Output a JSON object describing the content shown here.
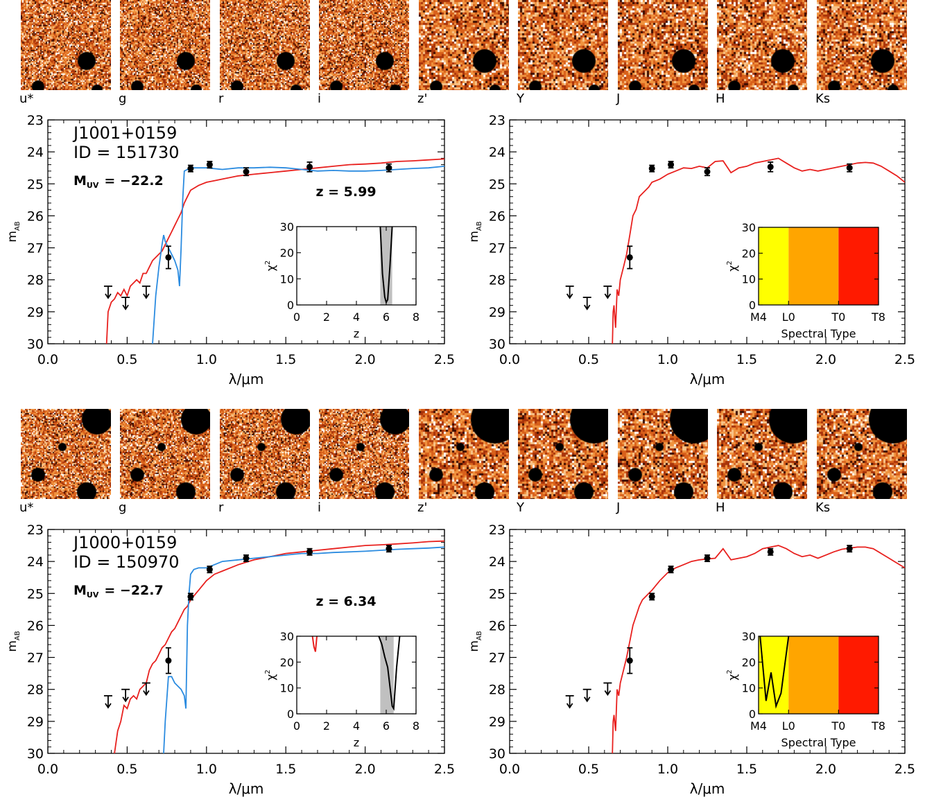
{
  "bands": [
    "u*",
    "g",
    "r",
    "i",
    "z'",
    "Y",
    "J",
    "H",
    "Ks"
  ],
  "colors": {
    "model_galaxy": "#e8201e",
    "model_lowz": "#2a8be0",
    "points": "#000000",
    "chi_band": "#c0c0c0",
    "type_M": "#ffff00",
    "type_L": "#ffa500",
    "type_T": "#ff1a00"
  },
  "chart_data": [
    {
      "type": "line",
      "object": "J1001+0159",
      "id_label": "ID  =  151730",
      "muv_label": "M",
      "muv_sub": "UV",
      "muv_value": "=  −22.2",
      "z_label": "z  =  5.99",
      "xlabel": "λ/μm",
      "ylabel": "m",
      "ylabel_sub": "AB",
      "xlim": [
        0.0,
        2.5
      ],
      "ylim": [
        30,
        23
      ],
      "xticks": [
        "0.0",
        "0.5",
        "1.0",
        "1.5",
        "2.0",
        "2.5"
      ],
      "yticks": [
        "23",
        "24",
        "25",
        "26",
        "27",
        "28",
        "29",
        "30"
      ],
      "photometry": [
        {
          "x": 0.76,
          "y": 27.3,
          "err": 0.35
        },
        {
          "x": 0.9,
          "y": 24.52,
          "err": 0.1
        },
        {
          "x": 1.02,
          "y": 24.4,
          "err": 0.1
        },
        {
          "x": 1.25,
          "y": 24.62,
          "err": 0.12
        },
        {
          "x": 1.65,
          "y": 24.47,
          "err": 0.15
        },
        {
          "x": 2.15,
          "y": 24.5,
          "err": 0.12
        }
      ],
      "upper_limits": [
        {
          "x": 0.38,
          "y": 28.2
        },
        {
          "x": 0.49,
          "y": 28.55
        },
        {
          "x": 0.62,
          "y": 28.2
        }
      ],
      "series": [
        {
          "color_key": "model_galaxy",
          "x": [
            0.37,
            0.38,
            0.4,
            0.42,
            0.44,
            0.46,
            0.48,
            0.5,
            0.52,
            0.54,
            0.56,
            0.58,
            0.6,
            0.62,
            0.64,
            0.66,
            0.68,
            0.7,
            0.72,
            0.74,
            0.76,
            0.78,
            0.8,
            0.82,
            0.84,
            0.86,
            0.88,
            0.9,
            0.95,
            1.0,
            1.05,
            1.1,
            1.2,
            1.3,
            1.4,
            1.5,
            1.6,
            1.7,
            1.8,
            1.9,
            2.0,
            2.1,
            2.2,
            2.3,
            2.4,
            2.5
          ],
          "y": [
            30.0,
            29.0,
            28.7,
            28.6,
            28.4,
            28.5,
            28.3,
            28.5,
            28.2,
            28.1,
            28.0,
            28.1,
            27.8,
            27.8,
            27.6,
            27.4,
            27.3,
            27.2,
            27.1,
            26.9,
            26.7,
            26.5,
            26.3,
            26.1,
            25.9,
            25.6,
            25.4,
            25.2,
            25.05,
            24.95,
            24.9,
            24.85,
            24.75,
            24.7,
            24.65,
            24.6,
            24.55,
            24.5,
            24.45,
            24.4,
            24.38,
            24.35,
            24.3,
            24.28,
            24.25,
            24.22
          ]
        },
        {
          "color_key": "model_lowz",
          "x": [
            0.66,
            0.68,
            0.7,
            0.72,
            0.73,
            0.74,
            0.76,
            0.78,
            0.8,
            0.82,
            0.83,
            0.84,
            0.85,
            0.86,
            0.88,
            0.9,
            0.95,
            1.0,
            1.1,
            1.2,
            1.3,
            1.4,
            1.5,
            1.6,
            1.7,
            1.8,
            1.9,
            2.0,
            2.1,
            2.2,
            2.3,
            2.4,
            2.5
          ],
          "y": [
            30.0,
            28.5,
            27.6,
            26.9,
            26.6,
            26.8,
            27.0,
            27.2,
            27.4,
            27.7,
            28.2,
            27.0,
            25.5,
            24.6,
            24.55,
            24.5,
            24.5,
            24.5,
            24.55,
            24.5,
            24.5,
            24.48,
            24.5,
            24.55,
            24.6,
            24.58,
            24.6,
            24.6,
            24.58,
            24.55,
            24.52,
            24.5,
            24.45
          ]
        }
      ],
      "inset": {
        "xlim": [
          0,
          8
        ],
        "ylim": [
          0,
          30
        ],
        "xlabel": "z",
        "ylabel": "χ",
        "ylabel_sup": "2",
        "xticks": [
          "0",
          "2",
          "4",
          "6",
          "8"
        ],
        "yticks": [
          "0",
          "10",
          "20",
          "30"
        ],
        "band": [
          5.6,
          6.4
        ],
        "curves": [
          {
            "color_key": "points",
            "x": [
              5.6,
              5.75,
              5.9,
              6.0,
              6.1,
              6.25,
              6.4
            ],
            "y": [
              30,
              12,
              3,
              1,
              2,
              15,
              30
            ]
          }
        ]
      }
    },
    {
      "type": "line",
      "xlabel": "λ/μm",
      "ylabel": "m",
      "ylabel_sub": "AB",
      "xlim": [
        0.0,
        2.5
      ],
      "ylim": [
        30,
        23
      ],
      "xticks": [
        "0.0",
        "0.5",
        "1.0",
        "1.5",
        "2.0",
        "2.5"
      ],
      "yticks": [
        "23",
        "24",
        "25",
        "26",
        "27",
        "28",
        "29",
        "30"
      ],
      "photometry": [
        {
          "x": 0.76,
          "y": 27.3,
          "err": 0.35
        },
        {
          "x": 0.9,
          "y": 24.52,
          "err": 0.1
        },
        {
          "x": 1.02,
          "y": 24.4,
          "err": 0.1
        },
        {
          "x": 1.25,
          "y": 24.62,
          "err": 0.12
        },
        {
          "x": 1.65,
          "y": 24.47,
          "err": 0.15
        },
        {
          "x": 2.15,
          "y": 24.5,
          "err": 0.12
        }
      ],
      "upper_limits": [
        {
          "x": 0.38,
          "y": 28.2
        },
        {
          "x": 0.49,
          "y": 28.55
        },
        {
          "x": 0.62,
          "y": 28.2
        }
      ],
      "series": [
        {
          "color_key": "model_galaxy",
          "x": [
            0.65,
            0.655,
            0.66,
            0.67,
            0.68,
            0.69,
            0.7,
            0.72,
            0.74,
            0.76,
            0.78,
            0.8,
            0.82,
            0.84,
            0.86,
            0.88,
            0.9,
            0.95,
            1.0,
            1.05,
            1.1,
            1.15,
            1.2,
            1.25,
            1.3,
            1.35,
            1.4,
            1.45,
            1.5,
            1.55,
            1.6,
            1.65,
            1.7,
            1.75,
            1.8,
            1.85,
            1.9,
            1.95,
            2.0,
            2.05,
            2.1,
            2.15,
            2.2,
            2.25,
            2.3,
            2.35,
            2.4,
            2.45,
            2.5
          ],
          "y": [
            30.0,
            29.0,
            28.8,
            29.5,
            28.3,
            28.5,
            28.0,
            27.6,
            27.2,
            26.6,
            26.0,
            25.8,
            25.4,
            25.3,
            25.2,
            25.1,
            24.95,
            24.85,
            24.7,
            24.6,
            24.5,
            24.52,
            24.45,
            24.5,
            24.3,
            24.28,
            24.65,
            24.5,
            24.45,
            24.35,
            24.3,
            24.25,
            24.2,
            24.35,
            24.5,
            24.6,
            24.55,
            24.6,
            24.55,
            24.5,
            24.45,
            24.4,
            24.35,
            24.33,
            24.35,
            24.45,
            24.6,
            24.75,
            24.95
          ]
        }
      ],
      "inset": {
        "xlabel": "Spectral Type",
        "ylabel": "χ",
        "ylabel_sup": "2",
        "ylim": [
          0,
          30
        ],
        "xticks": [
          "M4",
          "L0",
          "T0",
          "T8"
        ],
        "yticks": [
          "0",
          "10",
          "20",
          "30"
        ],
        "regions": [
          {
            "from": 0,
            "to": 6,
            "color_key": "type_M"
          },
          {
            "from": 6,
            "to": 16,
            "color_key": "type_L"
          },
          {
            "from": 16,
            "to": 24,
            "color_key": "type_T"
          }
        ],
        "xlim": [
          0,
          24
        ],
        "curves": []
      }
    },
    {
      "type": "line",
      "object": "J1000+0159",
      "id_label": "ID  =  150970",
      "muv_label": "M",
      "muv_sub": "UV",
      "muv_value": "=  −22.7",
      "z_label": "z  =  6.34",
      "xlabel": "λ/μm",
      "ylabel": "m",
      "ylabel_sub": "AB",
      "xlim": [
        0.0,
        2.5
      ],
      "ylim": [
        30,
        23
      ],
      "xticks": [
        "0.0",
        "0.5",
        "1.0",
        "1.5",
        "2.0",
        "2.5"
      ],
      "yticks": [
        "23",
        "24",
        "25",
        "26",
        "27",
        "28",
        "29",
        "30"
      ],
      "photometry": [
        {
          "x": 0.76,
          "y": 27.1,
          "err": 0.4
        },
        {
          "x": 0.9,
          "y": 25.1,
          "err": 0.1
        },
        {
          "x": 1.02,
          "y": 24.25,
          "err": 0.1
        },
        {
          "x": 1.25,
          "y": 23.9,
          "err": 0.1
        },
        {
          "x": 1.65,
          "y": 23.7,
          "err": 0.1
        },
        {
          "x": 2.15,
          "y": 23.6,
          "err": 0.1
        }
      ],
      "upper_limits": [
        {
          "x": 0.38,
          "y": 28.2
        },
        {
          "x": 0.49,
          "y": 28.0
        },
        {
          "x": 0.62,
          "y": 27.8
        }
      ],
      "series": [
        {
          "color_key": "model_galaxy",
          "x": [
            0.42,
            0.44,
            0.46,
            0.48,
            0.5,
            0.52,
            0.54,
            0.56,
            0.58,
            0.6,
            0.62,
            0.64,
            0.66,
            0.68,
            0.7,
            0.72,
            0.74,
            0.76,
            0.78,
            0.8,
            0.82,
            0.84,
            0.86,
            0.88,
            0.9,
            0.95,
            1.0,
            1.05,
            1.1,
            1.2,
            1.3,
            1.4,
            1.5,
            1.6,
            1.7,
            1.8,
            1.9,
            2.0,
            2.1,
            2.2,
            2.3,
            2.4,
            2.5
          ],
          "y": [
            30.0,
            29.3,
            29.0,
            28.5,
            28.6,
            28.3,
            28.2,
            28.3,
            28.0,
            27.9,
            27.8,
            27.4,
            27.2,
            27.1,
            26.9,
            26.7,
            26.6,
            26.4,
            26.2,
            26.1,
            25.9,
            25.7,
            25.5,
            25.4,
            25.2,
            24.9,
            24.6,
            24.4,
            24.3,
            24.1,
            23.95,
            23.85,
            23.75,
            23.7,
            23.65,
            23.6,
            23.55,
            23.5,
            23.48,
            23.45,
            23.42,
            23.38,
            23.36
          ]
        },
        {
          "color_key": "model_lowz",
          "x": [
            0.73,
            0.74,
            0.76,
            0.78,
            0.8,
            0.82,
            0.84,
            0.86,
            0.87,
            0.88,
            0.89,
            0.9,
            0.92,
            0.95,
            1.0,
            1.05,
            1.1,
            1.2,
            1.3,
            1.4,
            1.5,
            1.6,
            1.7,
            1.8,
            1.9,
            2.0,
            2.1,
            2.2,
            2.3,
            2.4,
            2.5
          ],
          "y": [
            30.0,
            29.0,
            27.6,
            27.6,
            27.8,
            27.9,
            28.0,
            28.2,
            28.6,
            26.0,
            25.0,
            24.4,
            24.25,
            24.2,
            24.2,
            24.1,
            24.0,
            23.95,
            23.9,
            23.85,
            23.8,
            23.75,
            23.75,
            23.72,
            23.7,
            23.68,
            23.65,
            23.62,
            23.6,
            23.58,
            23.55
          ]
        }
      ],
      "inset": {
        "xlim": [
          0,
          8
        ],
        "ylim": [
          0,
          30
        ],
        "xlabel": "z",
        "ylabel": "χ",
        "ylabel_sup": "2",
        "xticks": [
          "0",
          "2",
          "4",
          "6",
          "8"
        ],
        "yticks": [
          "0",
          "10",
          "20",
          "30"
        ],
        "band": [
          5.6,
          6.5
        ],
        "curves": [
          {
            "color_key": "points",
            "x": [
              5.5,
              5.7,
              5.9,
              6.1,
              6.3,
              6.4,
              6.5,
              6.7,
              6.9
            ],
            "y": [
              30,
              27,
              22,
              18,
              8,
              3,
              2,
              18,
              30
            ]
          },
          {
            "color_key": "model_galaxy",
            "x": [
              1.05,
              1.15,
              1.25,
              1.35
            ],
            "y": [
              30,
              26,
              24,
              30
            ]
          }
        ]
      }
    },
    {
      "type": "line",
      "xlabel": "λ/μm",
      "ylabel": "m",
      "ylabel_sub": "AB",
      "xlim": [
        0.0,
        2.5
      ],
      "ylim": [
        30,
        23
      ],
      "xticks": [
        "0.0",
        "0.5",
        "1.0",
        "1.5",
        "2.0",
        "2.5"
      ],
      "yticks": [
        "23",
        "24",
        "25",
        "26",
        "27",
        "28",
        "29",
        "30"
      ],
      "photometry": [
        {
          "x": 0.76,
          "y": 27.1,
          "err": 0.4
        },
        {
          "x": 0.9,
          "y": 25.1,
          "err": 0.1
        },
        {
          "x": 1.02,
          "y": 24.25,
          "err": 0.1
        },
        {
          "x": 1.25,
          "y": 23.9,
          "err": 0.1
        },
        {
          "x": 1.65,
          "y": 23.7,
          "err": 0.1
        },
        {
          "x": 2.15,
          "y": 23.6,
          "err": 0.1
        }
      ],
      "upper_limits": [
        {
          "x": 0.38,
          "y": 28.2
        },
        {
          "x": 0.49,
          "y": 28.0
        },
        {
          "x": 0.62,
          "y": 27.8
        }
      ],
      "series": [
        {
          "color_key": "model_galaxy",
          "x": [
            0.65,
            0.655,
            0.66,
            0.67,
            0.68,
            0.69,
            0.7,
            0.72,
            0.74,
            0.76,
            0.78,
            0.8,
            0.82,
            0.84,
            0.86,
            0.88,
            0.9,
            0.95,
            1.0,
            1.05,
            1.1,
            1.15,
            1.2,
            1.25,
            1.3,
            1.35,
            1.4,
            1.45,
            1.5,
            1.55,
            1.6,
            1.65,
            1.7,
            1.75,
            1.8,
            1.85,
            1.9,
            1.95,
            2.0,
            2.05,
            2.1,
            2.15,
            2.2,
            2.25,
            2.3,
            2.35,
            2.4,
            2.45,
            2.5
          ],
          "y": [
            30.0,
            29.0,
            28.8,
            29.3,
            28.0,
            28.2,
            27.8,
            27.4,
            27.0,
            26.5,
            26.0,
            25.7,
            25.4,
            25.2,
            25.1,
            25.0,
            24.9,
            24.6,
            24.35,
            24.2,
            24.1,
            24.0,
            23.95,
            23.92,
            23.9,
            23.6,
            23.95,
            23.9,
            23.85,
            23.75,
            23.6,
            23.55,
            23.5,
            23.6,
            23.75,
            23.85,
            23.8,
            23.9,
            23.8,
            23.7,
            23.62,
            23.58,
            23.55,
            23.55,
            23.6,
            23.75,
            23.9,
            24.05,
            24.2
          ]
        }
      ],
      "inset": {
        "xlabel": "Spectral Type",
        "ylabel": "χ",
        "ylabel_sup": "2",
        "ylim": [
          0,
          30
        ],
        "xticks": [
          "M4",
          "L0",
          "T0",
          "T8"
        ],
        "yticks": [
          "0",
          "10",
          "20",
          "30"
        ],
        "regions": [
          {
            "from": 0,
            "to": 6,
            "color_key": "type_M"
          },
          {
            "from": 6,
            "to": 16,
            "color_key": "type_L"
          },
          {
            "from": 16,
            "to": 24,
            "color_key": "type_T"
          }
        ],
        "xlim": [
          0,
          24
        ],
        "curves": [
          {
            "color_key": "points",
            "x": [
              0.3,
              1.5,
              2.5,
              3.5,
              4.5,
              6.0
            ],
            "y": [
              30,
              5,
              16,
              3,
              8,
              30
            ]
          }
        ]
      }
    }
  ]
}
